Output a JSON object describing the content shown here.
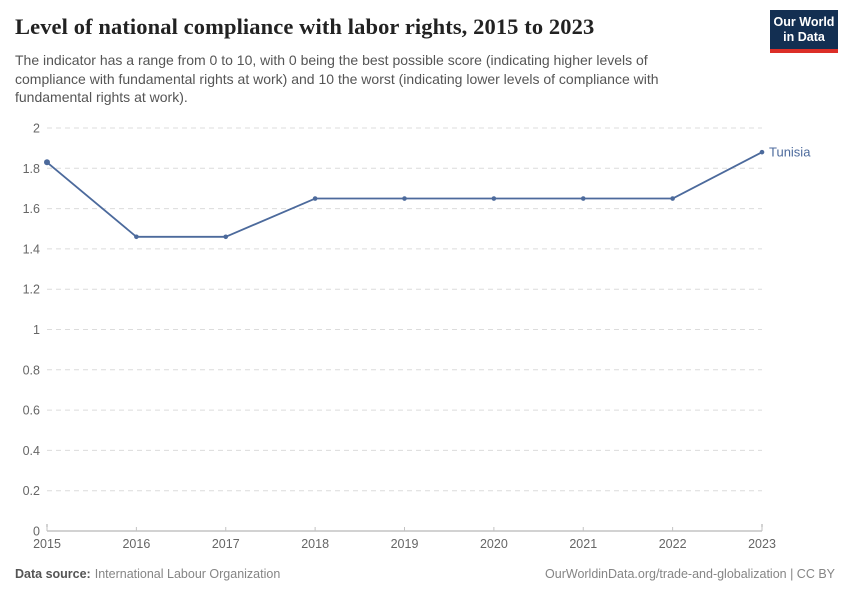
{
  "header": {
    "title": "Level of national compliance with labor rights, 2015 to 2023",
    "subtitle": "The indicator has a range from 0 to 10, with 0 being the best possible score (indicating higher levels of compliance with fundamental rights at work) and 10 the worst (indicating lower levels of compliance with fundamental rights at work).",
    "logo": {
      "line1": "Our World",
      "line2": "in Data",
      "bg_color": "#132f52",
      "accent_color": "#dc2e27"
    }
  },
  "chart_data": {
    "type": "line",
    "title": "Level of national compliance with labor rights, 2015 to 2023",
    "x": [
      2015,
      2016,
      2017,
      2018,
      2019,
      2020,
      2021,
      2022,
      2023
    ],
    "series": [
      {
        "name": "Tunisia",
        "values": [
          1.83,
          1.46,
          1.46,
          1.65,
          1.65,
          1.65,
          1.65,
          1.65,
          1.88
        ],
        "color": "#4C6A9C"
      }
    ],
    "xlabel": "",
    "ylabel": "",
    "ylim": [
      0,
      2
    ],
    "ytick_step": 0.2,
    "ytick_labels": [
      "0",
      "0.2",
      "0.4",
      "0.6",
      "0.8",
      "1",
      "1.2",
      "1.4",
      "1.6",
      "1.8",
      "2"
    ],
    "grid": "horizontal-dashed",
    "legend_position": "end-of-line-label",
    "colors": {
      "gridline": "#dcdcdc",
      "axis": "#a5a5a5",
      "tick": "#c2c2c2",
      "tick_label": "#666666"
    }
  },
  "footer": {
    "source_label": "Data source:",
    "source_value": "International Labour Organization",
    "attribution": "OurWorldinData.org/trade-and-globalization | CC BY"
  }
}
